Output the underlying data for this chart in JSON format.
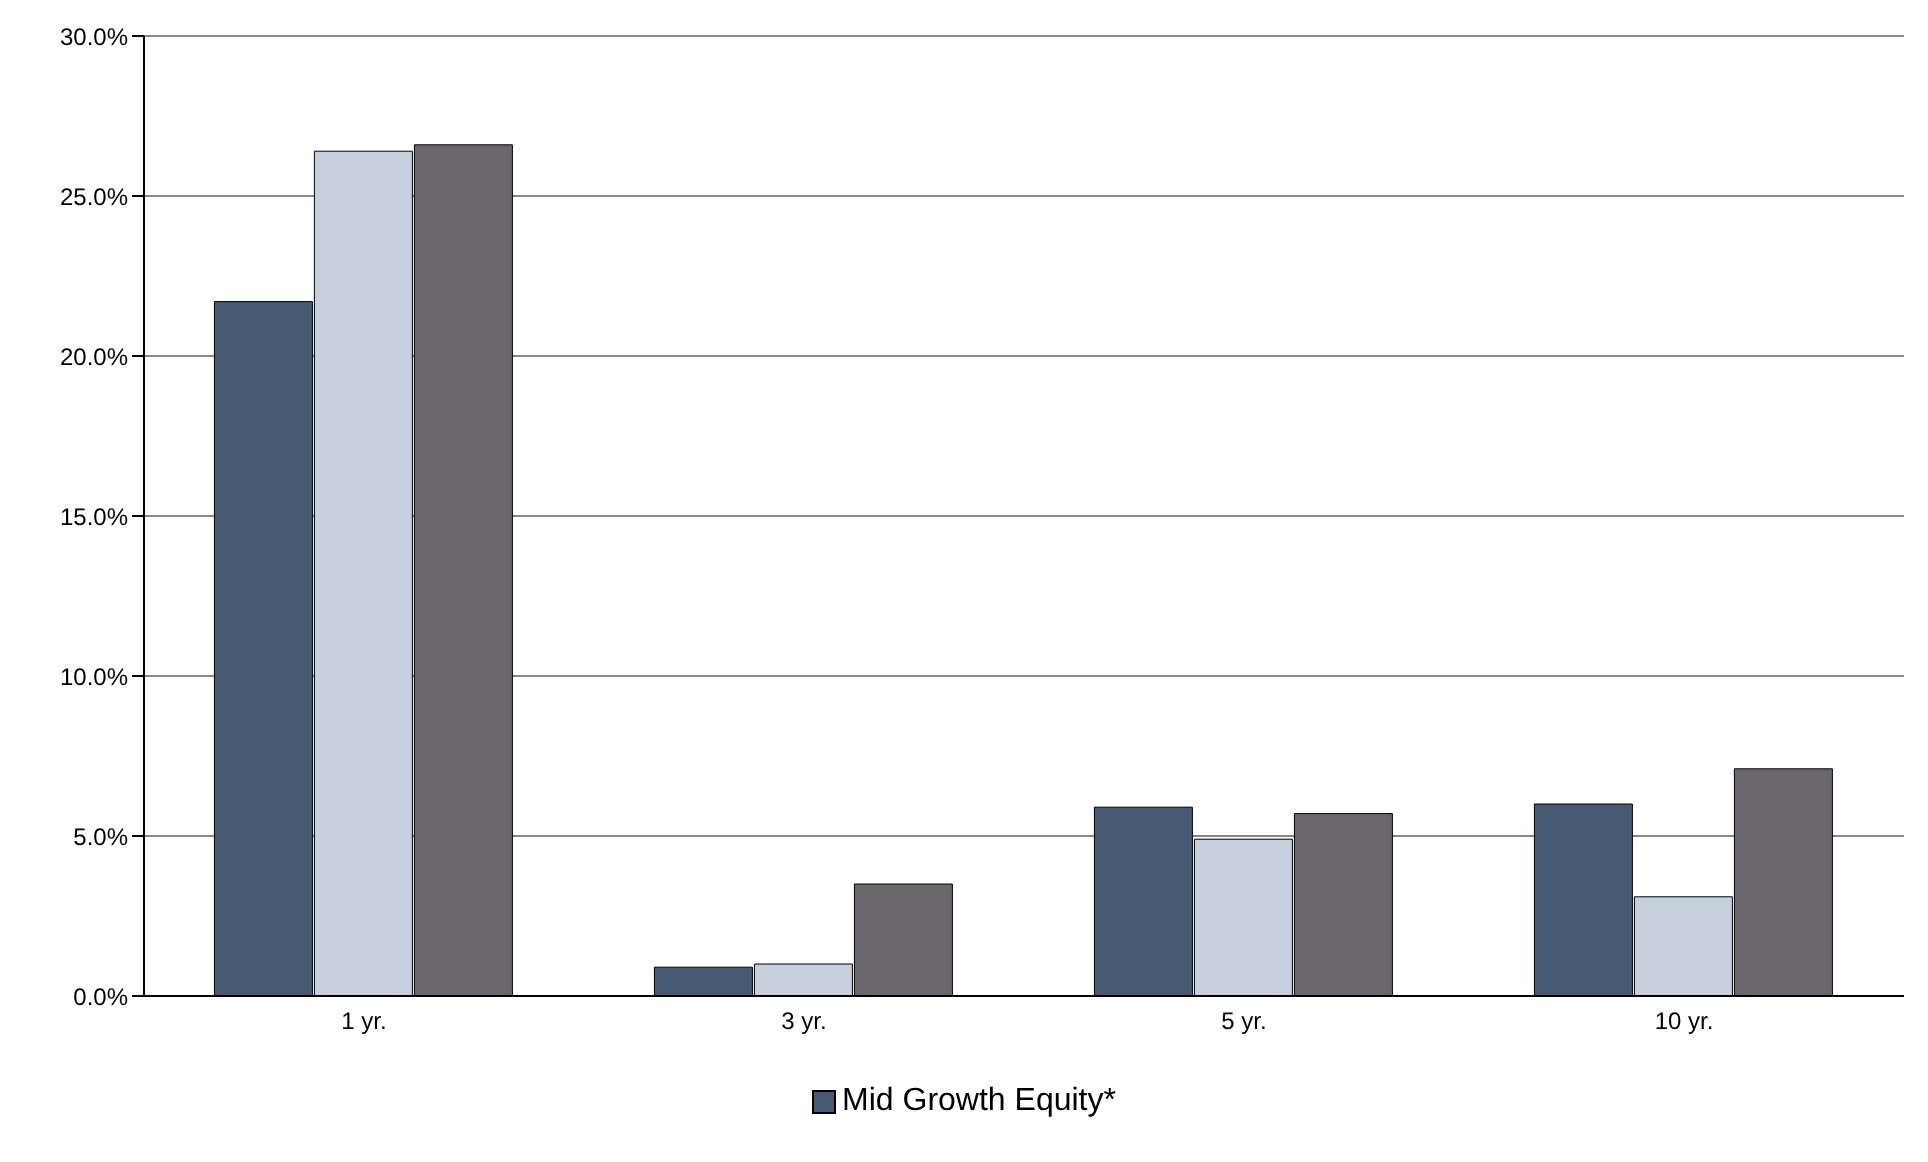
{
  "chart_data": {
    "type": "bar",
    "categories": [
      "1 yr.",
      "3 yr.",
      "5 yr.",
      "10 yr."
    ],
    "series": [
      {
        "name": "Mid Growth Equity*",
        "color": "#465a74",
        "values": [
          21.7,
          0.9,
          5.9,
          6.0
        ]
      },
      {
        "color": "#c5d0dc",
        "values": [
          26.4,
          1.0,
          4.9,
          3.1
        ]
      },
      {
        "color": "#69676c",
        "values": [
          26.6,
          3.5,
          5.7,
          7.1
        ]
      }
    ],
    "ylim": [
      0,
      30
    ],
    "yticks": [
      {
        "value": 0,
        "label": "0.0%"
      },
      {
        "value": 5,
        "label": "5.0%"
      },
      {
        "value": 10,
        "label": "10.0%"
      },
      {
        "value": 15,
        "label": "15.0%"
      },
      {
        "value": 20,
        "label": "20.0%"
      },
      {
        "value": 25,
        "label": "25.0%"
      },
      {
        "value": 30,
        "label": "30.0%"
      }
    ],
    "grid": "y",
    "legend": "bottom"
  }
}
